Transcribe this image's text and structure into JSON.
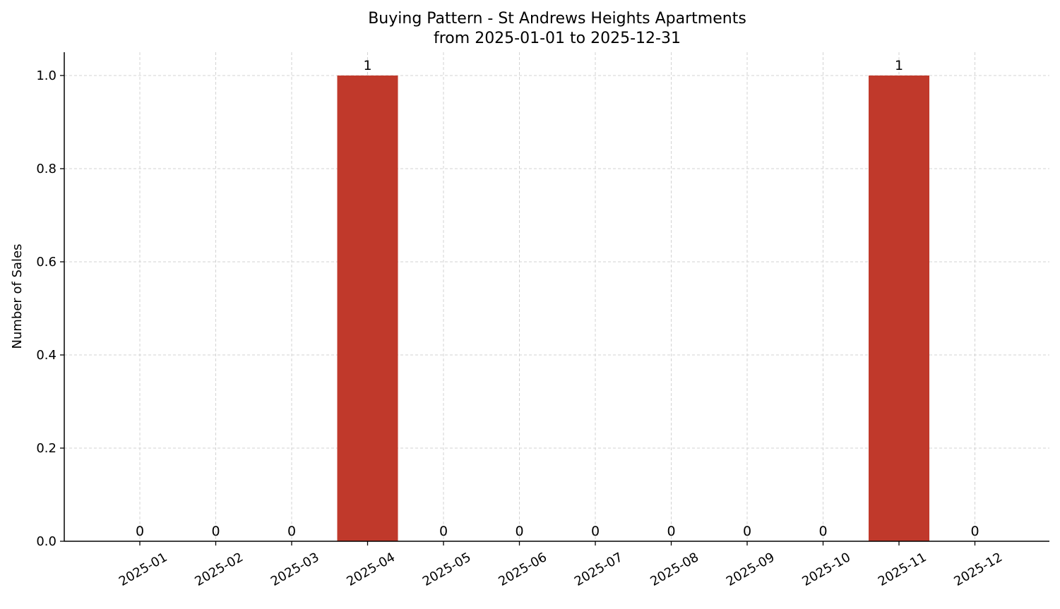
{
  "chart_data": {
    "type": "bar",
    "title_line1": "Buying Pattern - St Andrews Heights Apartments",
    "title_line2": "from 2025-01-01 to 2025-12-31",
    "xlabel": "",
    "ylabel": "Number of Sales",
    "categories": [
      "2025-01",
      "2025-02",
      "2025-03",
      "2025-04",
      "2025-05",
      "2025-06",
      "2025-07",
      "2025-08",
      "2025-09",
      "2025-10",
      "2025-11",
      "2025-12"
    ],
    "values": [
      0,
      0,
      0,
      1,
      0,
      0,
      0,
      0,
      0,
      0,
      1,
      0
    ],
    "data_labels": [
      "0",
      "0",
      "0",
      "1",
      "0",
      "0",
      "0",
      "0",
      "0",
      "0",
      "1",
      "0"
    ],
    "ylim": [
      0,
      1.05
    ],
    "yticks": [
      0.0,
      0.2,
      0.4,
      0.6,
      0.8,
      1.0
    ],
    "ytick_labels": [
      "0.0",
      "0.2",
      "0.4",
      "0.6",
      "0.8",
      "1.0"
    ],
    "grid": true,
    "bar_color": "#c0392b",
    "grid_color": "#d3d3d3"
  }
}
